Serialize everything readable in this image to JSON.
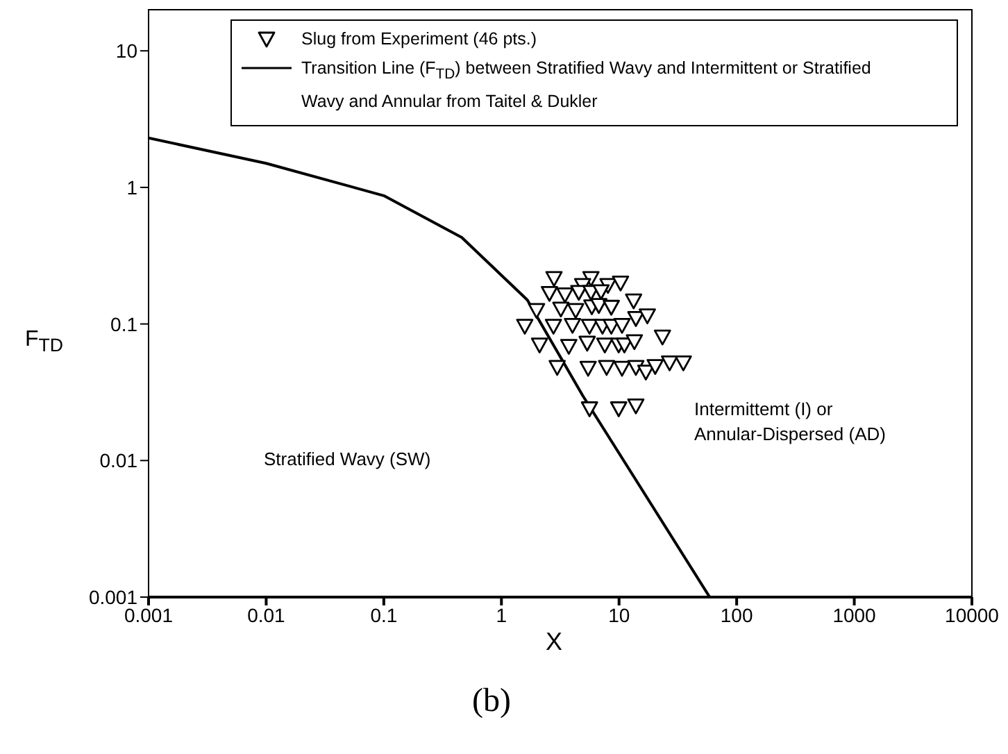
{
  "chart_data": {
    "type": "scatter",
    "xlabel": "X",
    "ylabel": "F$_{TD}$",
    "log": "xy",
    "xlim": [
      0.001,
      10000
    ],
    "ylim": [
      0.001,
      20
    ],
    "xticks": [
      0.001,
      0.01,
      0.1,
      1,
      10,
      100,
      1000,
      10000
    ],
    "yticks": [
      0.001,
      0.01,
      0.1,
      1,
      10
    ],
    "grid": false,
    "legend": "top",
    "marker": "triangle",
    "series": [
      {
        "name": "Slug from Experiment (46 pts.)",
        "color": "#000000",
        "x": [
          2.8,
          5.77,
          4.9,
          8.05,
          10.3,
          2.56,
          3.47,
          4.55,
          5.77,
          7.03,
          13.3,
          1.99,
          3.2,
          4.28,
          5.87,
          6.73,
          8.59,
          13.9,
          17.4,
          1.58,
          2.77,
          4.02,
          5.61,
          7.23,
          8.59,
          10.6,
          2.11,
          3.74,
          5.36,
          7.57,
          9.93,
          11.1,
          13.5,
          23.4,
          2.98,
          5.46,
          7.84,
          10.6,
          13.9,
          16.9,
          20.3,
          26.9,
          35.2,
          5.61,
          9.93,
          13.9
        ],
        "values": [
          0.216,
          0.216,
          0.192,
          0.192,
          0.2,
          0.168,
          0.164,
          0.171,
          0.171,
          0.173,
          0.148,
          0.126,
          0.129,
          0.126,
          0.134,
          0.137,
          0.133,
          0.11,
          0.115,
          0.0966,
          0.0966,
          0.098,
          0.0966,
          0.0966,
          0.0966,
          0.098,
          0.0704,
          0.0688,
          0.0726,
          0.0704,
          0.0704,
          0.0704,
          0.0744,
          0.0805,
          0.0482,
          0.0475,
          0.0482,
          0.0475,
          0.0482,
          0.0446,
          0.049,
          0.0521,
          0.0521,
          0.024,
          0.024,
          0.0252
        ]
      },
      {
        "type": "line",
        "marker": "none",
        "name": "Transition Line (F$_{TD}$) between Stratified Wavy and Intermittent or Stratified Wavy and Annular from Taitel & Dukler",
        "color": "#000000",
        "x": [
          0.001,
          0.01,
          0.1,
          0.46,
          1.66,
          4.9,
          59
        ],
        "values": [
          2.3,
          1.5,
          0.87,
          0.43,
          0.15,
          0.03,
          0.001
        ]
      }
    ],
    "annotations": [
      "Intermittemt (I) or\nAnnular-Dispersed (AD)",
      "Stratified Wavy (SW)",
      "(b)"
    ]
  }
}
